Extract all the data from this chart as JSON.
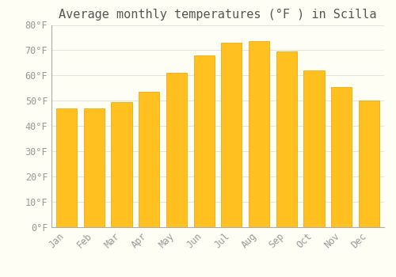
{
  "title": "Average monthly temperatures (°F ) in Scilla",
  "months": [
    "Jan",
    "Feb",
    "Mar",
    "Apr",
    "May",
    "Jun",
    "Jul",
    "Aug",
    "Sep",
    "Oct",
    "Nov",
    "Dec"
  ],
  "values": [
    47,
    47,
    49.5,
    53.5,
    61,
    68,
    73,
    73.5,
    69.5,
    62,
    55.5,
    50
  ],
  "bar_color_main": "#FFC020",
  "bar_color_edge": "#E8A000",
  "ylim": [
    0,
    80
  ],
  "ytick_step": 10,
  "background_color": "#FFFEF5",
  "grid_color": "#DDDDDD",
  "title_fontsize": 11,
  "tick_fontsize": 8.5,
  "tick_label_color": "#999999",
  "title_color": "#555555"
}
